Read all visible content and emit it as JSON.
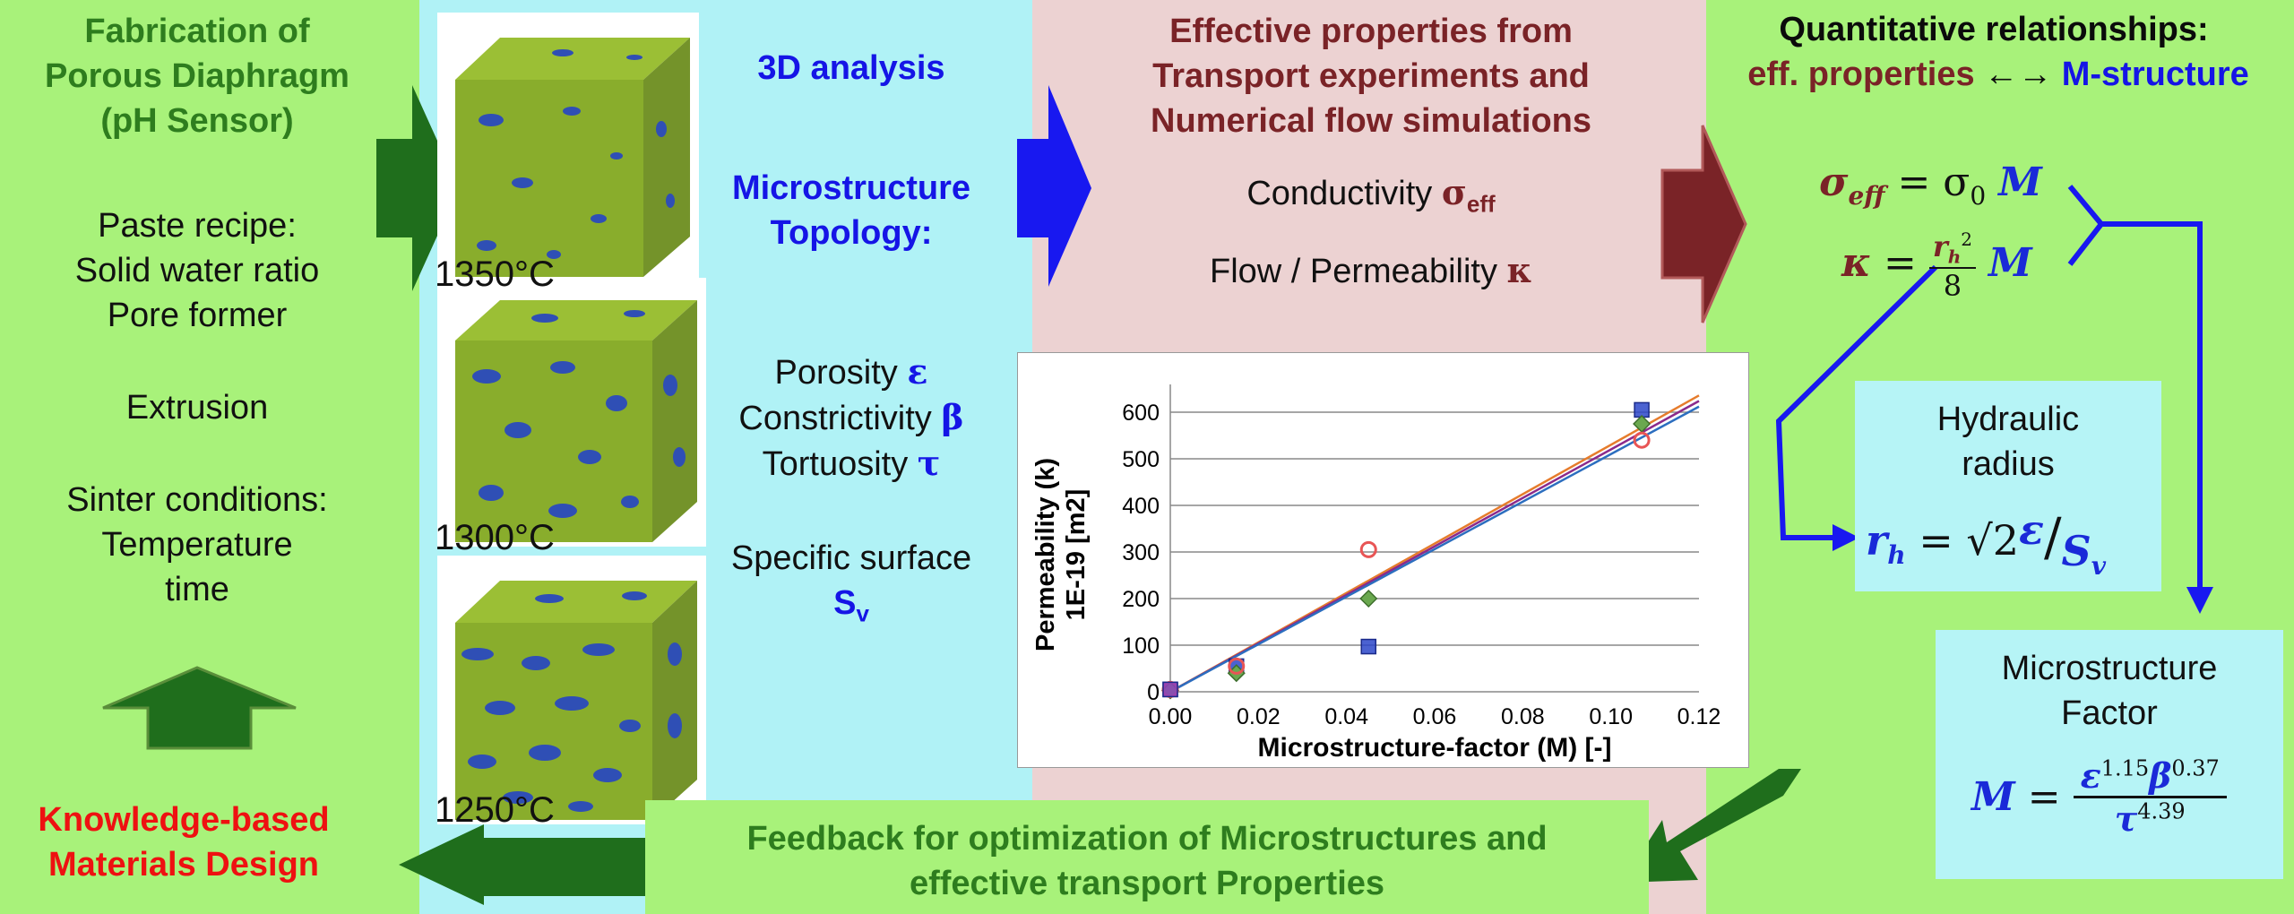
{
  "left": {
    "title": [
      "Fabrication of",
      "Porous Diaphragm",
      "(pH Sensor)"
    ],
    "recipe": [
      "Paste recipe:",
      "Solid water ratio",
      "Pore former"
    ],
    "extrusion": "Extrusion",
    "sinter": [
      "Sinter conditions:",
      "Temperature",
      "time"
    ],
    "design": [
      "Knowledge-based",
      "Materials Design"
    ]
  },
  "analysis": {
    "title": "3D analysis",
    "topology": [
      "Microstructure",
      "Topology:"
    ],
    "porosity": "Porosity",
    "porosity_sym": "ε",
    "constrictivity": "Constrictivity",
    "constrictivity_sym": "β",
    "tortuosity": "Tortuosity",
    "tortuosity_sym": "τ",
    "surface": "Specific surface",
    "surface_sym": "S",
    "surface_sub": "v"
  },
  "temperatures": [
    "1350°C",
    "1300°C",
    "1250°C"
  ],
  "effective": {
    "title": [
      "Effective properties from",
      "Transport experiments and",
      "Numerical flow simulations"
    ],
    "conductivity": "Conductivity",
    "conductivity_sym": "σ",
    "conductivity_sub": "eff",
    "permeability": "Flow / Permeability",
    "permeability_sym": "κ"
  },
  "quant": {
    "title": "Quantitative relationships:",
    "eff": "eff. properties",
    "arrow": "←→",
    "mstruct": "M-structure"
  },
  "hydraulic": [
    "Hydraulic",
    "radius"
  ],
  "mfactor": [
    "Microstructure",
    "Factor"
  ],
  "feedback": [
    "Feedback for optimization of Microstructures and",
    "effective transport Properties"
  ],
  "colors": {
    "green_panel": "#a8f27a",
    "cyan_panel": "#b0f2f6",
    "pink_panel": "#ecd2d2",
    "cube_green": "#89ad2c",
    "pore_blue": "#2f4fb5",
    "arrow_green": "#1f6e1c",
    "arrow_blue": "#1818f0",
    "arrow_maroon": "#7a2327"
  },
  "chart_data": {
    "type": "scatter",
    "xlabel": "Microstructure-factor (M) [-]",
    "ylabel": [
      "Permeability (k)",
      "1E-19 [m2]"
    ],
    "xlim": [
      0,
      0.12
    ],
    "ylim": [
      0,
      650
    ],
    "xticks": [
      "0.00",
      "0.02",
      "0.04",
      "0.06",
      "0.08",
      "0.10",
      "0.12"
    ],
    "yticks": [
      "0",
      "100",
      "200",
      "300",
      "400",
      "500",
      "600"
    ],
    "xtick_values": [
      0,
      0.02,
      0.04,
      0.06,
      0.08,
      0.1,
      0.12
    ],
    "ytick_values": [
      0,
      100,
      200,
      300,
      400,
      500,
      600
    ],
    "grid": true,
    "series": [
      {
        "marker": "square",
        "color": "#2b47c9",
        "points": [
          [
            0.0,
            5
          ],
          [
            0.015,
            55
          ],
          [
            0.045,
            97
          ],
          [
            0.107,
            605
          ]
        ]
      },
      {
        "marker": "diamond",
        "color": "#6aa84f",
        "points": [
          [
            0.0,
            3
          ],
          [
            0.015,
            40
          ],
          [
            0.045,
            200
          ],
          [
            0.107,
            575
          ]
        ]
      },
      {
        "marker": "circle",
        "color": "#e85555",
        "points": [
          [
            0.0,
            5
          ],
          [
            0.015,
            55
          ],
          [
            0.045,
            305
          ],
          [
            0.107,
            540
          ]
        ]
      },
      {
        "marker": "square",
        "color": "#8e3fbf",
        "points": [
          [
            0.0,
            5
          ]
        ]
      }
    ],
    "fits": [
      {
        "color": "#e67c2c",
        "slope": 5300,
        "intercept": 0
      },
      {
        "color": "#8b2a8b",
        "slope": 5200,
        "intercept": 0
      },
      {
        "color": "#2c6ebf",
        "slope": 5100,
        "intercept": 0
      }
    ]
  }
}
